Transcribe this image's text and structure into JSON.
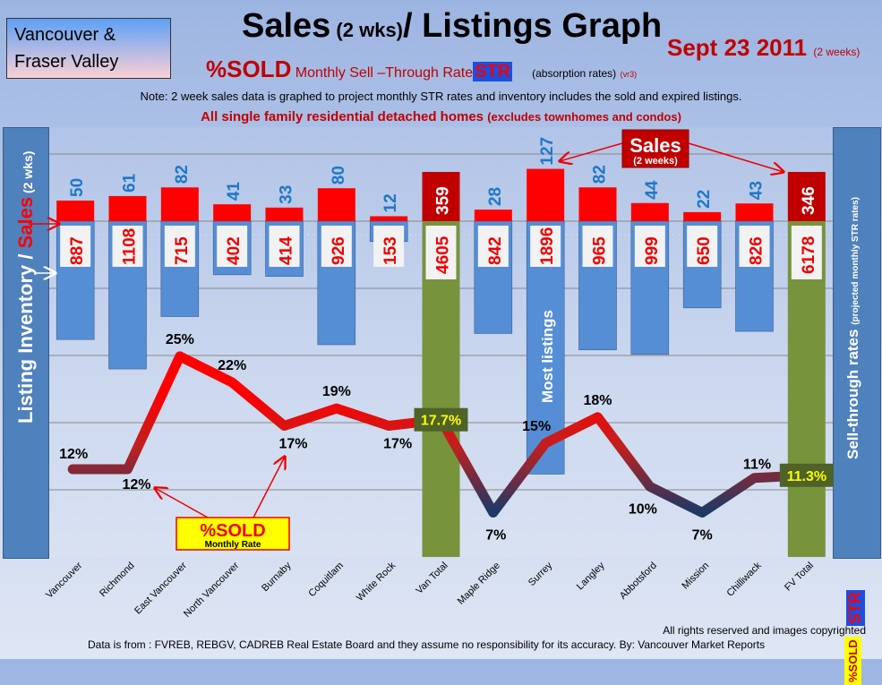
{
  "header": {
    "region_line1": "Vancouver &",
    "region_line2": "Fraser Valley",
    "title_main1": "Sales",
    "title_small": " (2 wks)",
    "title_main2": "/ Listings Graph",
    "date": "Sept 23 2011",
    "date_note": "(2 weeks)",
    "sold_label": "%SOLD",
    "str_desc": " Monthly Sell –Through Rate",
    "str_badge": "STR",
    "absorption": "(absorption rates)",
    "version": "(vr3)",
    "note": "Note: 2 week sales data is graphed to project monthly STR rates and inventory includes the sold and expired listings.",
    "single_family": "All single family residential detached homes",
    "excludes": "(excludes townhomes and condos)"
  },
  "left_axis": {
    "part1": "Listing Inventory / ",
    "part2": "Sales",
    "part3": " (2 wks)"
  },
  "right_axis": {
    "label": "Sell-through rates",
    "note": "(projected monthly STR rates)",
    "str": "STR",
    "sold": "%SOLD"
  },
  "annotations": {
    "sales_callout": "Sales",
    "sales_callout_sub": "(2 weeks)",
    "most_listings": "Most listings",
    "sold_box": "%SOLD",
    "sold_box_sub": "Monthly Rate"
  },
  "footer": {
    "rights": "All rights reserved and  images copyrighted",
    "source": "Data is from : FVREB, REBGV, CADREB Real Estate Board and they assume no responsibility for its accuracy. By: Vancouver Market Reports"
  },
  "colors": {
    "sales": "#ff0000",
    "inventory": "#558ed5",
    "total": "#77933c",
    "total_sales": "#c00000",
    "line_high": "#ff0000",
    "line_low": "#1f3864"
  },
  "chart_data": {
    "type": "bar",
    "categories": [
      "Vancouver",
      "Richmond",
      "East Vancouver",
      "North Vancouver",
      "Burnaby",
      "Coquitlam",
      "White Rock",
      "Van Total",
      "Maple Ridge",
      "Surrey",
      "Langley",
      "Abbotsford",
      "Mission",
      "Chilliwack",
      "FV Total"
    ],
    "series": [
      {
        "name": "Sales (2 wks)",
        "values": [
          50,
          61,
          82,
          41,
          33,
          80,
          12,
          359,
          28,
          127,
          82,
          44,
          22,
          43,
          346
        ]
      },
      {
        "name": "Listing Inventory",
        "values": [
          887,
          1108,
          715,
          402,
          414,
          926,
          153,
          4605,
          842,
          1896,
          965,
          999,
          650,
          826,
          6178
        ]
      },
      {
        "name": "%SOLD Monthly STR",
        "type": "line",
        "values": [
          12,
          12,
          25,
          22,
          17,
          19,
          17,
          17.7,
          7,
          15,
          18,
          10,
          7,
          11,
          11.3
        ],
        "labels": [
          "12%",
          "12%",
          "25%",
          "22%",
          "17%",
          "19%",
          "17%",
          "17.7%",
          "7%",
          "15%",
          "18%",
          "10%",
          "7%",
          "11%",
          "11.3%"
        ]
      }
    ],
    "totals": [
      "Van Total",
      "FV Total"
    ],
    "title": "Sales (2 wks)/ Listings Graph"
  }
}
